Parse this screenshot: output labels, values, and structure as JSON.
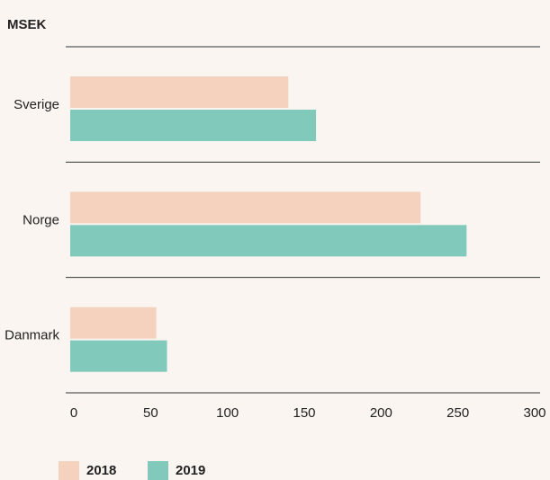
{
  "chart_data": {
    "type": "bar",
    "orientation": "horizontal",
    "title": "MSEK",
    "categories": [
      "Sverige",
      "Norge",
      "Danmark"
    ],
    "series": [
      {
        "name": "2018",
        "color": "#f5d2bd",
        "values": [
          142,
          228,
          56
        ]
      },
      {
        "name": "2019",
        "color": "#80c9bb",
        "values": [
          160,
          258,
          63
        ]
      }
    ],
    "xlim": [
      0,
      300
    ],
    "xticks": [
      0,
      50,
      100,
      150,
      200,
      250,
      300
    ],
    "grid": false,
    "legend": "bottom"
  }
}
